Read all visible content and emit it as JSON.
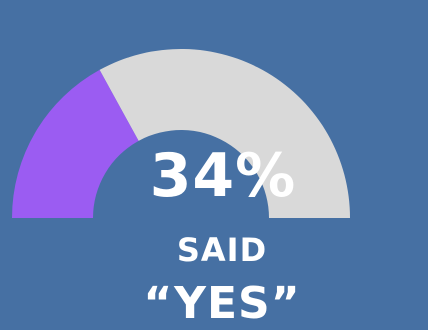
{
  "chart_data": {
    "type": "gauge",
    "value_percent": 34,
    "value_label": "34%",
    "caption_line1": "SAID",
    "caption_line2": "“YES”",
    "colors": {
      "background": "#4670a3",
      "filled": "#9b5cf2",
      "remaining": "#d9d9d9",
      "text": "#ffffff"
    }
  }
}
